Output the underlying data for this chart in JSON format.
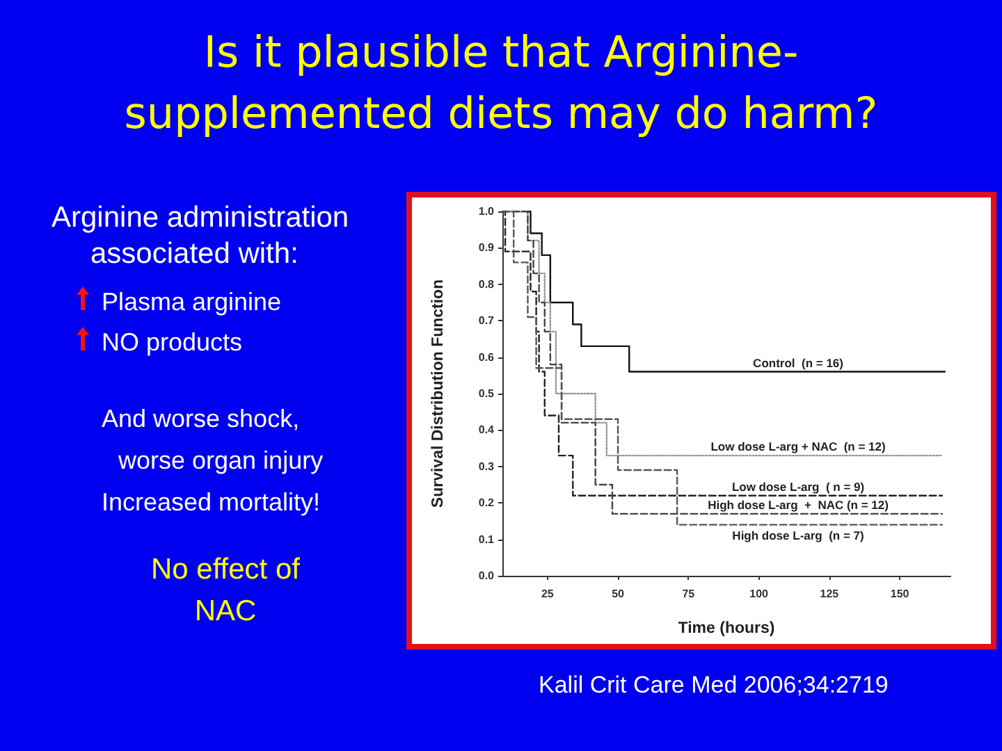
{
  "chart_data": {
    "type": "step",
    "title": "Is it plausible that Arginine-supplemented diets may do harm?",
    "xlabel": "Time (hours)",
    "ylabel": "Survival Distribution Function",
    "annotations": [
      "Arginine administration associated with:",
      "Plasma arginine",
      "NO products",
      "And worse shock,",
      "worse organ injury",
      "Increased mortality!",
      "No effect of NAC",
      "Kalil Crit Care Med 2006;34:2719"
    ],
    "xlim": [
      9,
      168
    ],
    "xticks": [
      25,
      50,
      75,
      100,
      125,
      150
    ],
    "ylim": [
      0,
      1
    ],
    "yticks": [
      {
        "value": 0,
        "label": "0.0"
      },
      0.1,
      0.2,
      0.3,
      0.4,
      0.5,
      0.6,
      0.7,
      0.8,
      0.9,
      {
        "value": 1,
        "label": "1.0"
      }
    ],
    "marker": "none",
    "series": [
      {
        "name": "Control  (n = 16)",
        "color": "#111111",
        "line_style": "solid",
        "x": [
          9,
          19,
          23,
          26,
          34,
          37,
          54,
          166
        ],
        "values": [
          1,
          0.94,
          0.88,
          0.75,
          0.69,
          0.63,
          0.56,
          0.56
        ]
      },
      {
        "name": "Low dose L-arg + NAC  (n = 12)",
        "color": "#9a9a9a",
        "line_style": "dotted",
        "x": [
          9,
          18,
          22,
          24,
          26,
          28,
          42,
          46,
          165
        ],
        "values": [
          1,
          0.92,
          0.83,
          0.75,
          0.67,
          0.5,
          0.42,
          0.33,
          0.33
        ]
      },
      {
        "name": "Low dose L-arg  ( n = 9)",
        "color": "#222222",
        "line_style": "dashed",
        "x": [
          9,
          10,
          19,
          21,
          22,
          24,
          29,
          34,
          165
        ],
        "values": [
          1,
          0.89,
          0.78,
          0.67,
          0.56,
          0.44,
          0.33,
          0.22,
          0.22
        ]
      },
      {
        "name": "High dose L-arg  +  NAC (n = 12)",
        "color": "#444444",
        "line_style": "dashed",
        "x": [
          9,
          18,
          20,
          22,
          24,
          26,
          30,
          42,
          48,
          165
        ],
        "values": [
          1,
          0.92,
          0.83,
          0.75,
          0.67,
          0.58,
          0.42,
          0.25,
          0.17,
          0.17
        ]
      },
      {
        "name": "High dose L-arg  (n = 7)",
        "color": "#555555",
        "line_style": "dashed",
        "x": [
          9,
          13,
          18,
          21,
          30,
          50,
          71,
          165
        ],
        "values": [
          1,
          0.86,
          0.71,
          0.57,
          0.43,
          0.29,
          0.14,
          0.14
        ]
      }
    ]
  }
}
